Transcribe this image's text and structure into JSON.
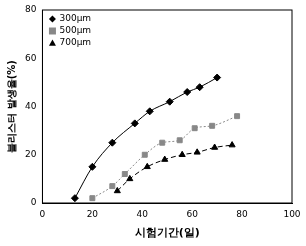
{
  "chart_data": {
    "type": "scatter",
    "x_label": "시험기간(일)",
    "y_label": "블리스터 발생율(%)",
    "xlim": [
      0,
      100
    ],
    "xticks": [
      0,
      20,
      40,
      60,
      80,
      100
    ],
    "ylim": [
      0,
      80
    ],
    "yticks": [
      0,
      20,
      40,
      60,
      80
    ],
    "grid": false,
    "legend": "upper left",
    "series": [
      {
        "name": "300μm",
        "color": "#000000",
        "marker": "diamond",
        "line_style": "solid",
        "x": [
          13,
          20,
          28,
          37,
          43,
          51,
          58,
          63,
          70
        ],
        "values": [
          2,
          15,
          25,
          33,
          38,
          42,
          46,
          48,
          52
        ]
      },
      {
        "name": "500μm",
        "color": "#888888",
        "marker": "square",
        "line_style": "dotted",
        "x": [
          20,
          28,
          33,
          41,
          48,
          55,
          61,
          68,
          78
        ],
        "values": [
          2,
          7,
          12,
          20,
          25,
          26,
          31,
          32,
          36
        ]
      },
      {
        "name": "700μm",
        "color": "#000000",
        "marker": "triangle",
        "line_style": "dashed",
        "x": [
          30,
          35,
          42,
          49,
          56,
          62,
          69,
          76
        ],
        "values": [
          5,
          10,
          15,
          18,
          20,
          21,
          23,
          24
        ]
      }
    ]
  }
}
